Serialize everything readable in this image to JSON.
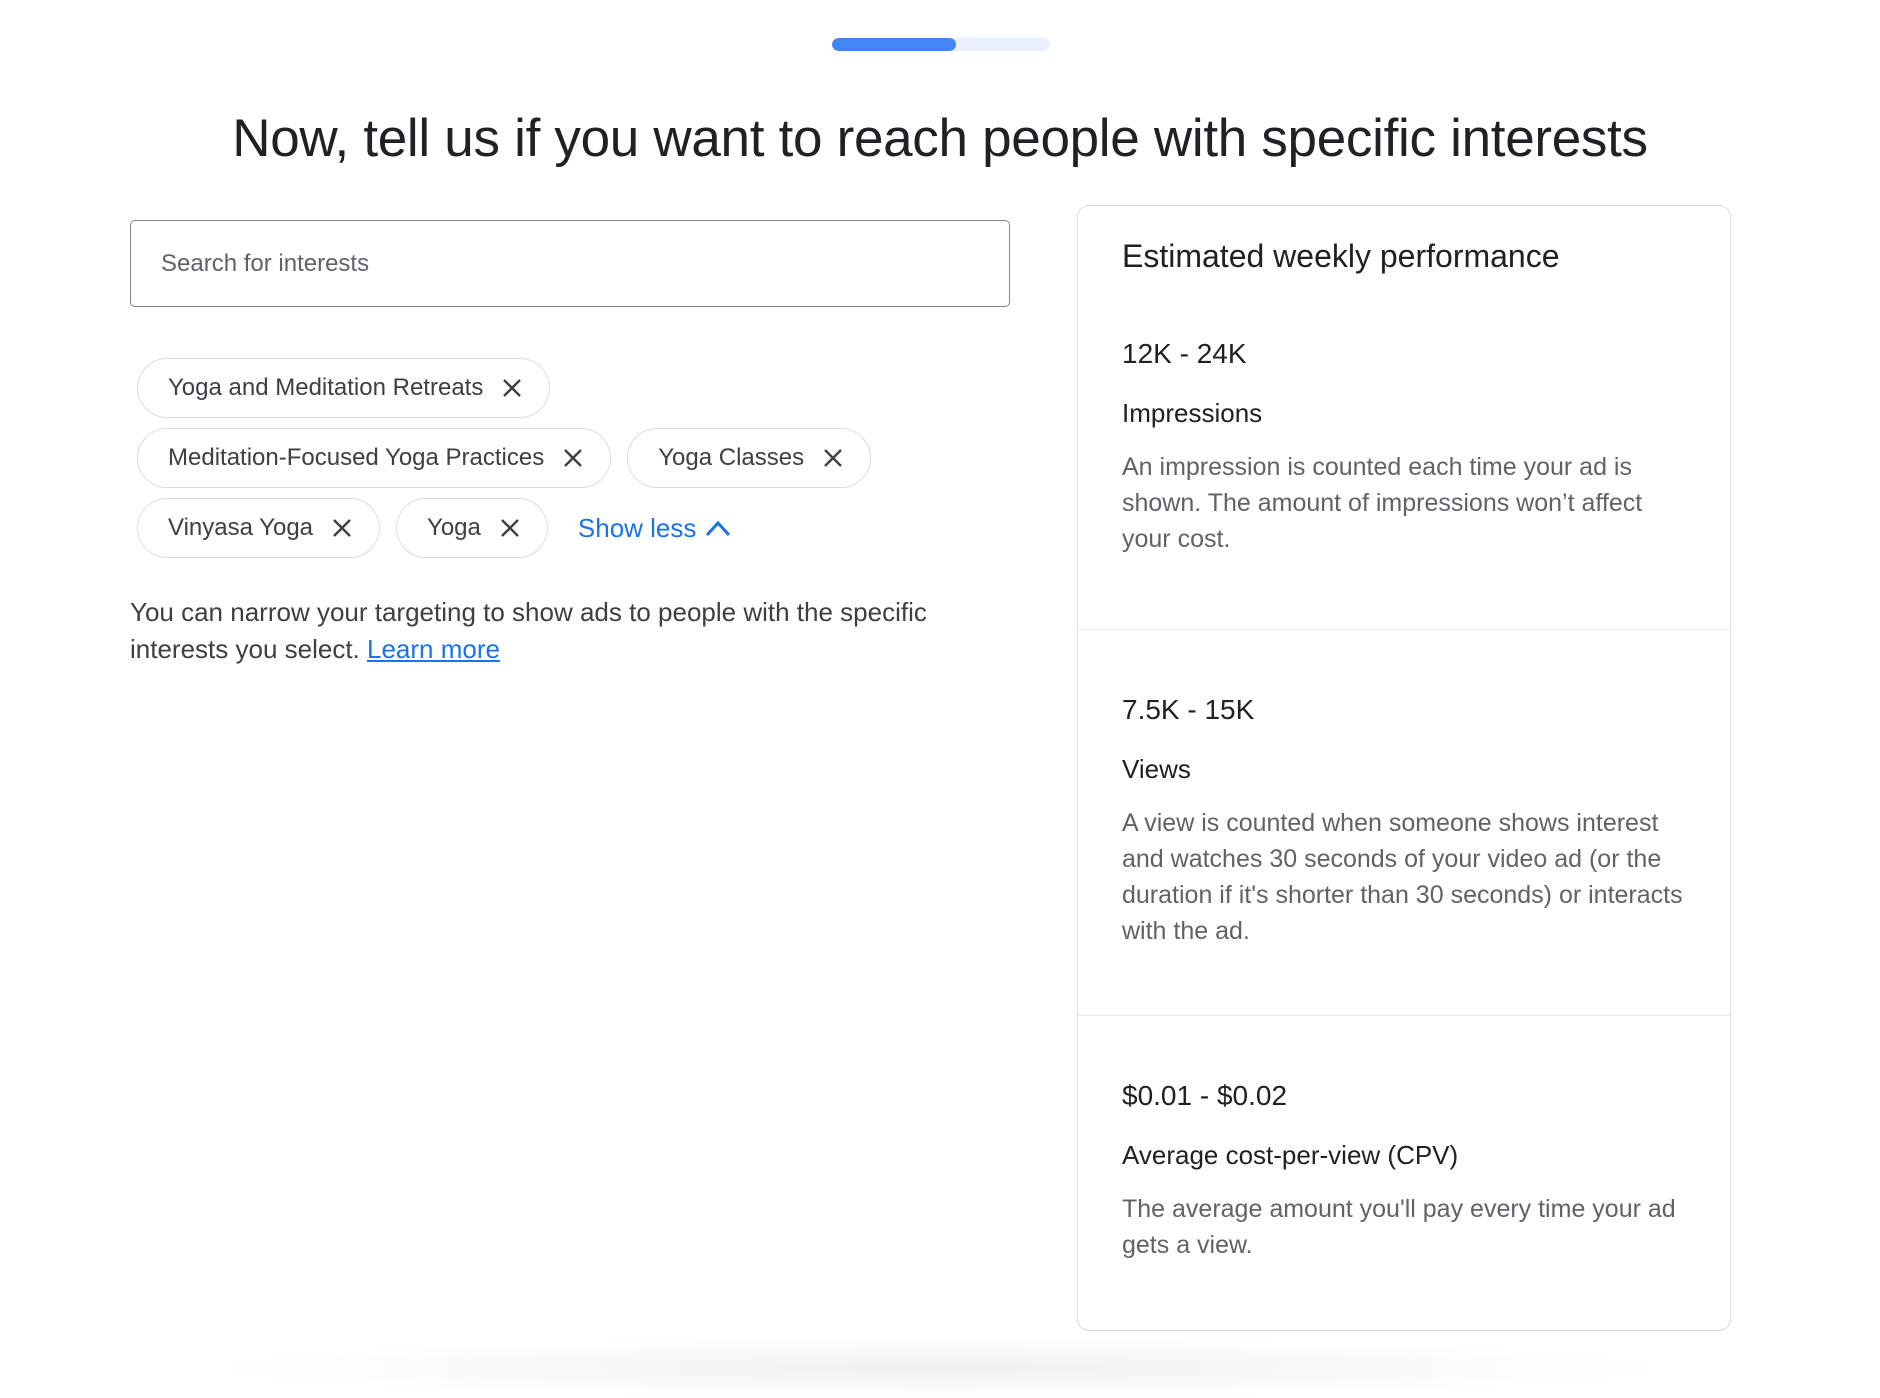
{
  "progress": {
    "percent": 57,
    "color": "#4285f4"
  },
  "title": "Now, tell us if you want to reach people with specific interests",
  "search": {
    "placeholder": "Search for interests",
    "value": ""
  },
  "chips": [
    {
      "label": "Yoga and Meditation Retreats"
    },
    {
      "label": "Meditation-Focused Yoga Practices"
    },
    {
      "label": "Yoga Classes"
    },
    {
      "label": "Vinyasa Yoga"
    },
    {
      "label": "Yoga"
    }
  ],
  "show_less": "Show less",
  "note": {
    "text": "You can narrow your targeting to show ads to people with the specific interests you select. ",
    "link": "Learn more"
  },
  "performance": {
    "title": "Estimated weekly performance",
    "sections": [
      {
        "value": "12K - 24K",
        "label": "Impressions",
        "description": "An impression is counted each time your ad is shown. The amount of impressions won’t affect your cost."
      },
      {
        "value": "7.5K - 15K",
        "label": "Views",
        "description": "A view is counted when someone shows interest and watches 30 seconds of your video ad (or the duration if it's shorter than 30 seconds) or interacts with the ad."
      },
      {
        "value": "$0.01 - $0.02",
        "label": "Average cost-per-view (CPV)",
        "description": "The average amount you'll pay every time your ad gets a view."
      }
    ]
  }
}
